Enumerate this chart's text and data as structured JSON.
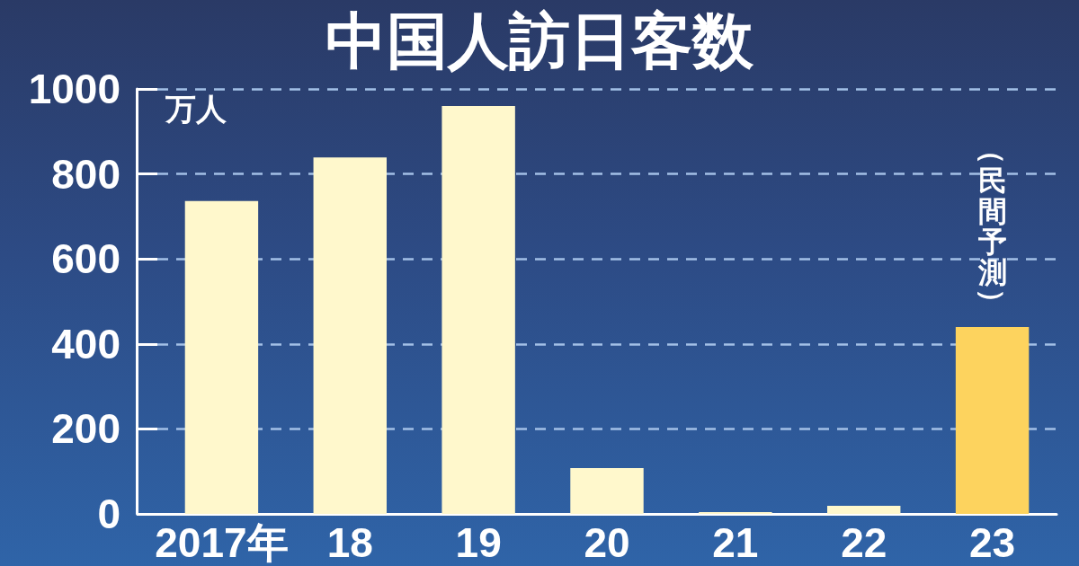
{
  "chart_data": {
    "type": "bar",
    "title": "中国人訪日客数",
    "ylabel": "万人",
    "categories": [
      "2017年",
      "18",
      "19",
      "20",
      "21",
      "22",
      "23"
    ],
    "values": [
      736,
      839,
      960,
      108,
      4,
      19,
      440
    ],
    "colors": [
      "#fff8cc",
      "#fff8cc",
      "#fff8cc",
      "#fff8cc",
      "#fff8cc",
      "#fff8cc",
      "#fdd35e"
    ],
    "ylim": [
      0,
      1000
    ],
    "yticks": [
      0,
      200,
      400,
      600,
      800,
      1000
    ],
    "grid": "y",
    "annotations": [
      {
        "text": "（民間予測）",
        "x": "23",
        "y": 440
      }
    ]
  }
}
